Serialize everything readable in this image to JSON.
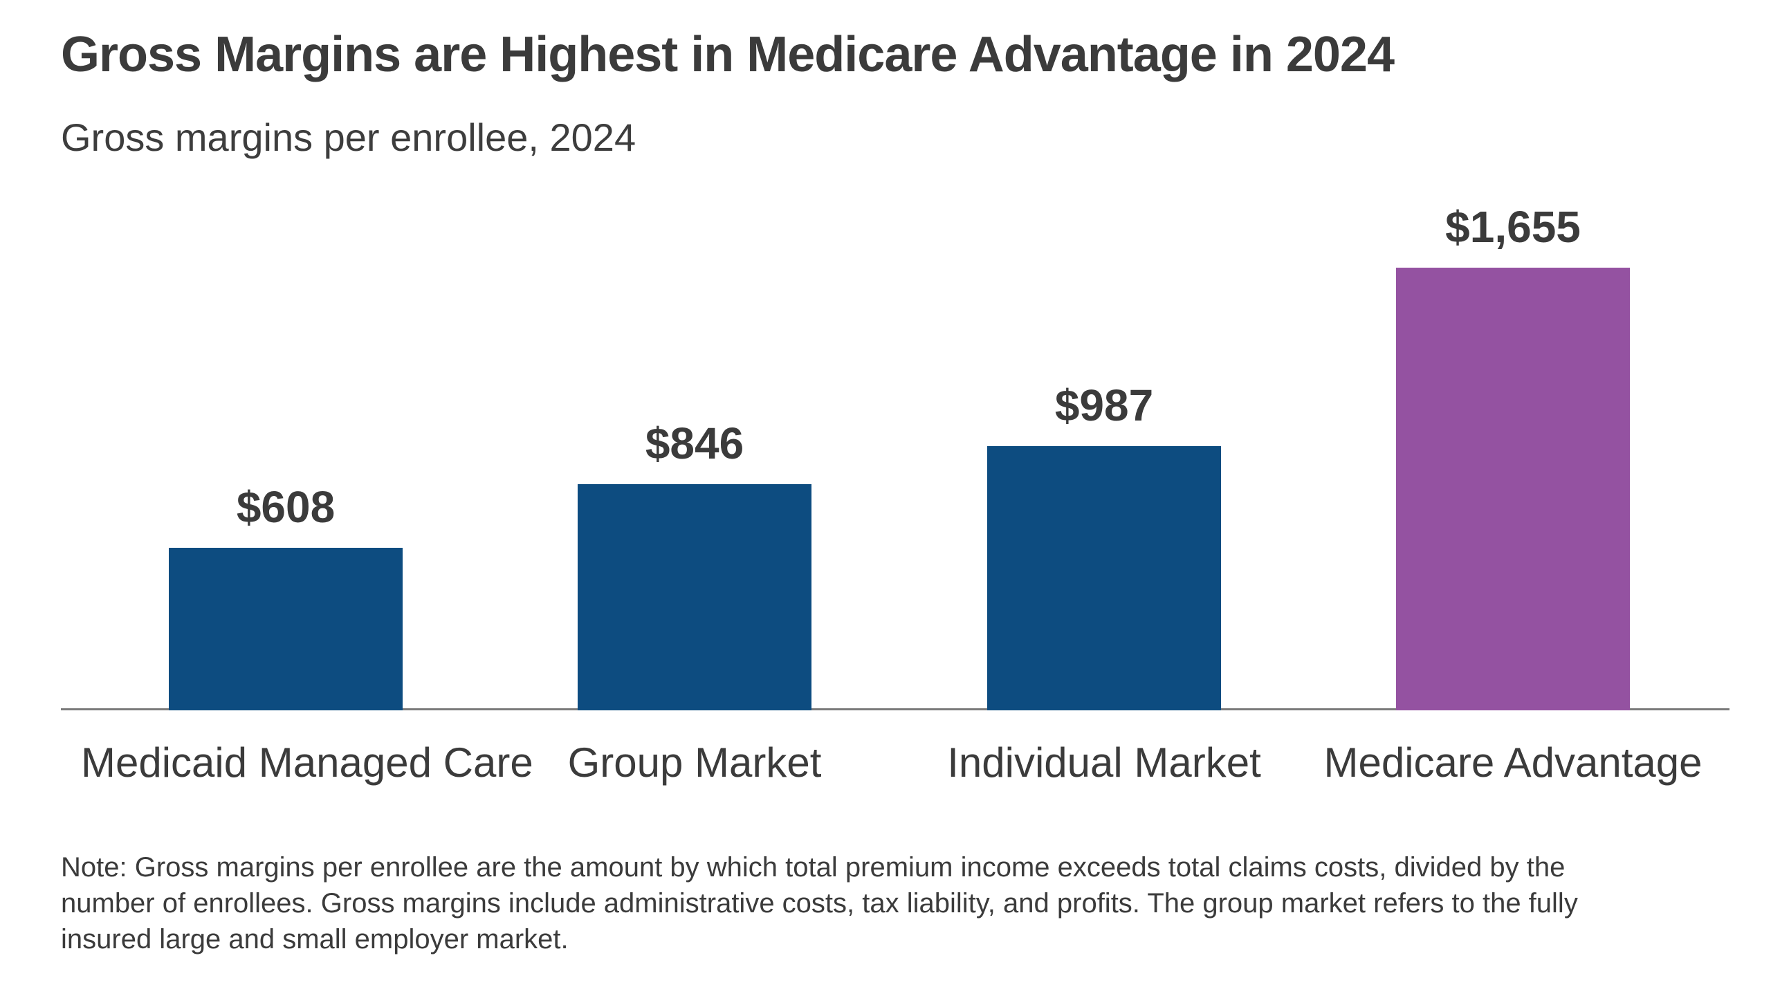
{
  "header": {
    "title": "Gross Margins are Highest in Medicare Advantage in 2024",
    "subtitle": "Gross margins per enrollee, 2024"
  },
  "chart_data": {
    "type": "bar",
    "title": "Gross Margins are Highest in Medicare Advantage in 2024",
    "subtitle": "Gross margins per enrollee, 2024",
    "categories": [
      "Medicaid Managed Care",
      "Group Market",
      "Individual Market",
      "Medicare Advantage"
    ],
    "values": [
      608,
      846,
      987,
      1655
    ],
    "value_labels": [
      "$608",
      "$846",
      "$987",
      "$1,655"
    ],
    "bar_colors": [
      "#0D4C80",
      "#0D4C80",
      "#0D4C80",
      "#9452A1"
    ],
    "highlight_category": "Medicare Advantage",
    "ylim": [
      0,
      1800
    ],
    "grid": false,
    "legend": "none",
    "xlabel": "",
    "ylabel": ""
  },
  "note": {
    "lines": [
      "Note: Gross margins per enrollee are the amount by which total premium income exceeds total claims costs, divided by the",
      "number of enrollees. Gross margins include administrative costs, tax liability, and profits. The group market refers to the fully",
      "insured large and small employer market."
    ]
  },
  "colors": {
    "bar_blue": "#0D4C80",
    "bar_purple": "#9452A1",
    "text": "#3B3B3B",
    "axis_line": "#7A7A7A",
    "background": "#FFFFFF"
  }
}
